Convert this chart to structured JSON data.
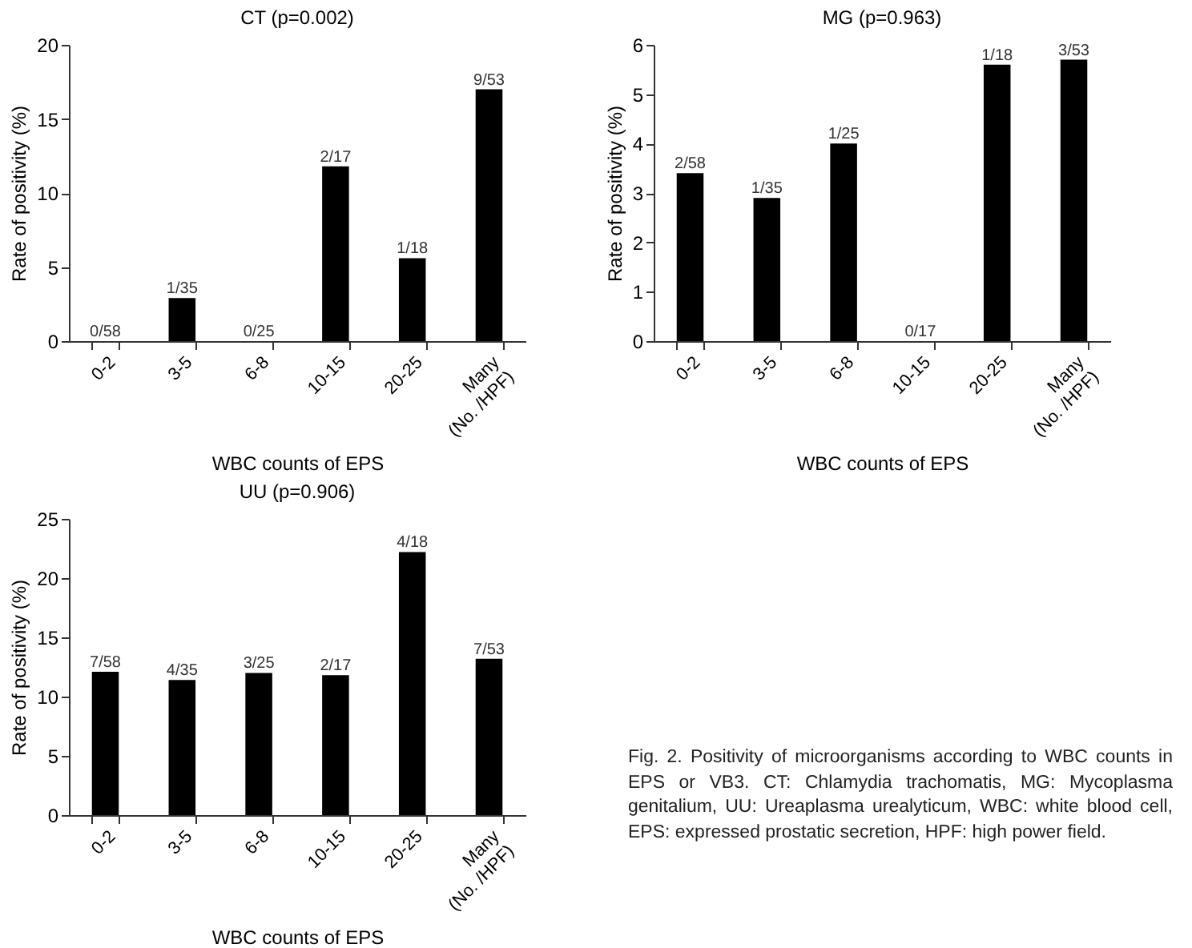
{
  "chart_data": [
    {
      "type": "bar",
      "title": "CT (p=0.002)",
      "xlabel": "WBC counts of EPS",
      "ylabel": "Rate of positivity (%)",
      "categories": [
        "0-2",
        "3-5",
        "6-8",
        "10-15",
        "20-25",
        "Many (No. /HPF)"
      ],
      "values": [
        0,
        2.9,
        0,
        11.8,
        5.6,
        17.0
      ],
      "value_labels": [
        "0/58",
        "1/35",
        "0/25",
        "2/17",
        "1/18",
        "9/53"
      ],
      "color": "#000000",
      "ylim": [
        0,
        20
      ],
      "yticks": [
        0,
        5,
        10,
        15,
        20
      ],
      "grid": false
    },
    {
      "type": "bar",
      "title": "MG (p=0.963)",
      "xlabel": "WBC counts of EPS",
      "ylabel": "Rate of positivity (%)",
      "categories": [
        "0-2",
        "3-5",
        "6-8",
        "10-15",
        "20-25",
        "Many (No. /HPF)"
      ],
      "values": [
        3.4,
        2.9,
        4.0,
        0,
        5.6,
        5.7
      ],
      "value_labels": [
        "2/58",
        "1/35",
        "1/25",
        "0/17",
        "1/18",
        "3/53"
      ],
      "color": "#000000",
      "ylim": [
        0,
        6
      ],
      "yticks": [
        0,
        1,
        2,
        3,
        4,
        5,
        6
      ],
      "grid": false
    },
    {
      "type": "bar",
      "title": "UU (p=0.906)",
      "xlabel": "WBC counts of EPS",
      "ylabel": "Rate of positivity (%)",
      "categories": [
        "0-2",
        "3-5",
        "6-8",
        "10-15",
        "20-25",
        "Many (No. /HPF)"
      ],
      "values": [
        12.1,
        11.4,
        12.0,
        11.8,
        22.2,
        13.2
      ],
      "value_labels": [
        "7/58",
        "4/35",
        "3/25",
        "2/17",
        "4/18",
        "7/53"
      ],
      "color": "#000000",
      "ylim": [
        0,
        25
      ],
      "yticks": [
        0,
        5,
        10,
        15,
        20,
        25
      ],
      "grid": false,
      "annotations": [
        "Fig. 2. Positivity of microorganisms according to WBC counts in EPS or VB3. CT: Chlamydia trachomatis, MG: Mycoplasma genitalium, UU: Ureaplasma urealyticum, WBC: white blood cell, EPS: expressed prostatic secretion, HPF: high power field."
      ]
    }
  ]
}
